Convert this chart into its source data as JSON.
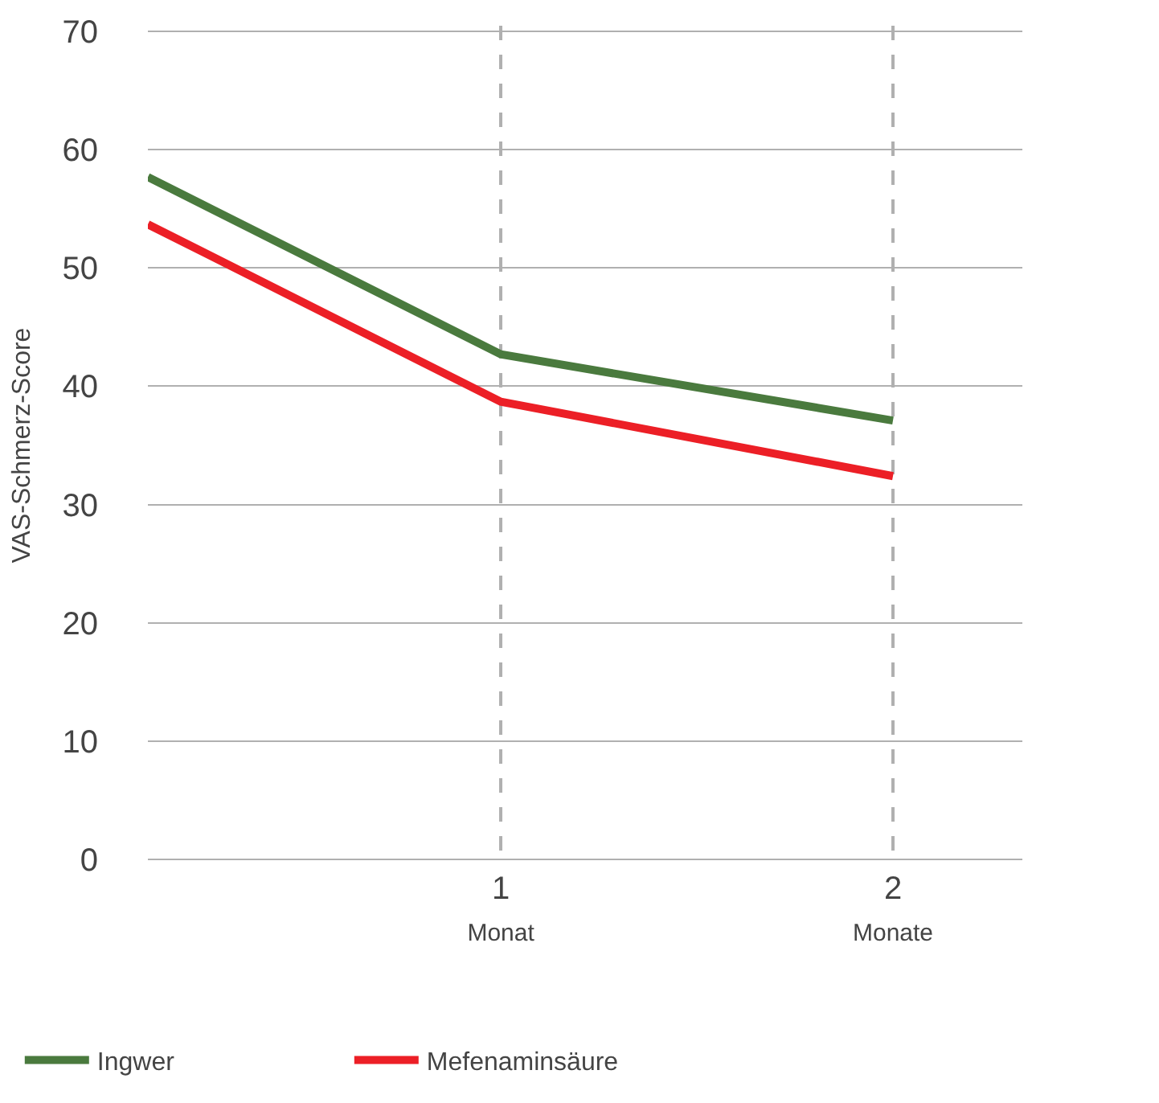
{
  "chart_data": {
    "type": "line",
    "ylabel": "VAS-Schmerz-Score",
    "x": [
      0.1,
      1,
      2
    ],
    "xlim": [
      0.1,
      2.33
    ],
    "xticks": [
      {
        "value": 1,
        "label": "1\nMonat"
      },
      {
        "value": 2,
        "label": "2\nMonate"
      }
    ],
    "ylim": [
      -0.5,
      70.5
    ],
    "yticks": [
      0,
      10,
      20,
      30,
      40,
      50,
      60,
      70
    ],
    "series": [
      {
        "name": "Ingwer",
        "color": "#4a7a3e",
        "values": [
          57.7,
          42.7,
          37.1
        ]
      },
      {
        "name": "Mefenaminsäure",
        "color": "#ec1f26",
        "values": [
          53.7,
          38.7,
          32.4
        ]
      }
    ],
    "grid": true,
    "legend": "bottom left",
    "marker": "none",
    "line_style": "solid"
  }
}
